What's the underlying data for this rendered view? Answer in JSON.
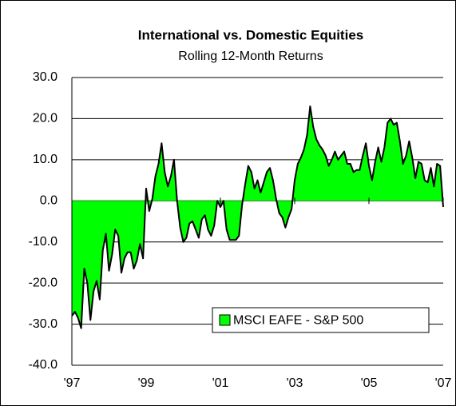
{
  "chart_data": {
    "type": "area",
    "title": "International vs. Domestic Equities",
    "subtitle": "Rolling 12-Month Returns",
    "categories": [
      "'97",
      null,
      null,
      null,
      null,
      null,
      null,
      null,
      null,
      null,
      null,
      null,
      null,
      null,
      null,
      null,
      null,
      null,
      null,
      null,
      null,
      null,
      null,
      null,
      "'99",
      null,
      null,
      null,
      null,
      null,
      null,
      null,
      null,
      null,
      null,
      null,
      null,
      null,
      null,
      null,
      null,
      null,
      null,
      null,
      null,
      null,
      null,
      null,
      "'01",
      null,
      null,
      null,
      null,
      null,
      null,
      null,
      null,
      null,
      null,
      null,
      null,
      null,
      null,
      null,
      null,
      null,
      null,
      null,
      null,
      null,
      null,
      null,
      "'03",
      null,
      null,
      null,
      null,
      null,
      null,
      null,
      null,
      null,
      null,
      null,
      null,
      null,
      null,
      null,
      null,
      null,
      null,
      null,
      null,
      null,
      null,
      null,
      "'05",
      null,
      null,
      null,
      null,
      null,
      null,
      null,
      null,
      null,
      null,
      null,
      null,
      null,
      null,
      null,
      null,
      null,
      null,
      null,
      null,
      null,
      null,
      null,
      "'07"
    ],
    "series": [
      {
        "name": "MSCI EAFE - S&P 500",
        "color": "#00ff00",
        "values": [
          -28,
          -27,
          -28.5,
          -31,
          -16.5,
          -20,
          -29,
          -22,
          -19.5,
          -24,
          -12,
          -8,
          -17,
          -13,
          -7,
          -8.5,
          -17.5,
          -14,
          -12.5,
          -12.5,
          -16.5,
          -14.5,
          -10.5,
          -14,
          3,
          -2.5,
          0.5,
          6,
          9,
          14,
          7,
          3.5,
          6,
          10,
          0,
          -6.5,
          -10,
          -9,
          -5.5,
          -5,
          -7,
          -9,
          -4.5,
          -3.5,
          -7,
          -8.5,
          -6,
          0,
          -1.5,
          0,
          -7,
          -9.5,
          -9.5,
          -9.5,
          -8.5,
          -1,
          4,
          8.5,
          7,
          3,
          5,
          2,
          4.5,
          7,
          8,
          5,
          0.5,
          -3,
          -4,
          -6.5,
          -4,
          -2,
          5,
          9,
          10.5,
          12.5,
          16,
          23,
          18,
          15,
          13.5,
          12.5,
          11,
          8.5,
          10,
          12,
          10,
          11,
          12,
          9,
          9,
          7,
          7.5,
          7.5,
          11,
          14,
          8.5,
          5,
          9.5,
          13,
          9.5,
          13,
          19,
          20,
          18.5,
          19,
          14.5,
          9,
          11,
          14.5,
          10.5,
          5.5,
          9.5,
          9,
          5,
          4.5,
          8,
          3.5,
          9,
          8.5,
          -1.5
        ]
      }
    ],
    "line_color": "#000000",
    "ylim": [
      -40,
      30
    ],
    "yticks": [
      {
        "value": -40,
        "label": "-40.0"
      },
      {
        "value": -30,
        "label": "-30.0"
      },
      {
        "value": -20,
        "label": "-20.0"
      },
      {
        "value": -10,
        "label": "-10.0"
      },
      {
        "value": 0,
        "label": "0.0"
      },
      {
        "value": 10,
        "label": "10.0"
      },
      {
        "value": 20,
        "label": "20.0"
      },
      {
        "value": 30,
        "label": "30.0"
      }
    ],
    "grid": true,
    "legend": "lower right"
  }
}
